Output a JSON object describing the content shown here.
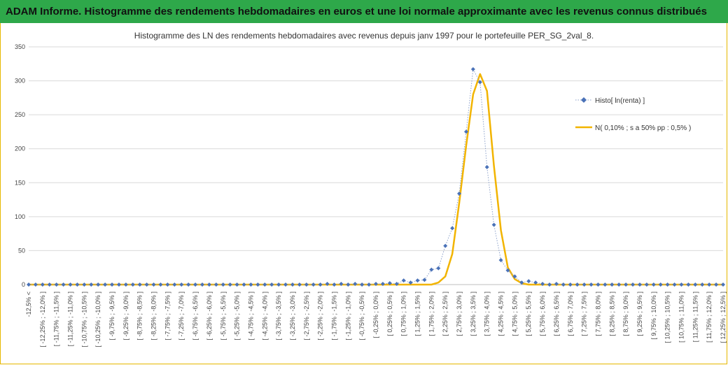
{
  "header": {
    "title": "ADAM Informe. Histogramme des rendements hebdomadaires en euros et une loi normale approximante avec les revenus connus distribués"
  },
  "colors": {
    "header_bg": "#2ea84a",
    "histo": "#4a72b8",
    "normal": "#f2b400",
    "grid": "#d9d9d9"
  },
  "chart_data": {
    "type": "line",
    "title": "Histogramme des LN des rendements hebdomadaires avec revenus depuis janv 1997 pour le portefeuille PER_SG_2val_8.",
    "xlabel": "",
    "ylabel": "",
    "ylim": [
      0,
      350
    ],
    "yticks": [
      0,
      50,
      100,
      150,
      200,
      250,
      300,
      350
    ],
    "grid": true,
    "legend": "right",
    "categories": [
      "-12,5% <",
      "[ -12,5% ; -12,25% ]",
      "[ -12,25% ; -12,0% ]",
      "[ -12,0% ; -11,75% ]",
      "[ -11,75% ; -11,5% ]",
      "[ -11,5% ; -11,25% ]",
      "[ -11,25% ; -11,0% ]",
      "[ -11,0% ; -10,75% ]",
      "[ -10,75% ; -10,5% ]",
      "[ -10,5% ; -10,25% ]",
      "[ -10,25% ; -10,0% ]",
      "[ -10,0% ; -9,75% ]",
      "[ -9,75% ; -9,5% ]",
      "[ -9,5% ; -9,25% ]",
      "[ -9,25% ; -9,0% ]",
      "[ -9,0% ; -8,75% ]",
      "[ -8,75% ; -8,5% ]",
      "[ -8,5% ; -8,25% ]",
      "[ -8,25% ; -8,0% ]",
      "[ -8,0% ; -7,75% ]",
      "[ -7,75% ; -7,5% ]",
      "[ -7,5% ; -7,25% ]",
      "[ -7,25% ; -7,0% ]",
      "[ -7,0% ; -6,75% ]",
      "[ -6,75% ; -6,5% ]",
      "[ -6,5% ; -6,25% ]",
      "[ -6,25% ; -6,0% ]",
      "[ -6,0% ; -5,75% ]",
      "[ -5,75% ; -5,5% ]",
      "[ -5,5% ; -5,25% ]",
      "[ -5,25% ; -5,0% ]",
      "[ -5,0% ; -4,75% ]",
      "[ -4,75% ; -4,5% ]",
      "[ -4,5% ; -4,25% ]",
      "[ -4,25% ; -4,0% ]",
      "[ -4,0% ; -3,75% ]",
      "[ -3,75% ; -3,5% ]",
      "[ -3,5% ; -3,25% ]",
      "[ -3,25% ; -3,0% ]",
      "[ -3,0% ; -2,75% ]",
      "[ -2,75% ; -2,5% ]",
      "[ -2,5% ; -2,25% ]",
      "[ -2,25% ; -2,0% ]",
      "[ -2,0% ; -1,75% ]",
      "[ -1,75% ; -1,5% ]",
      "[ -1,5% ; -1,25% ]",
      "[ -1,25% ; -1,0% ]",
      "[ -1,0% ; -0,75% ]",
      "[ -0,75% ; -0,5% ]",
      "[ -0,5% ; -0,25% ]",
      "[ -0,25% ; 0,0% ]",
      "[ 0,0% ; 0,25% ]",
      "[ 0,25% ; 0,5% ]",
      "[ 0,5% ; 0,75% ]",
      "[ 0,75% ; 1,0% ]",
      "[ 1,0% ; 1,25% ]",
      "[ 1,25% ; 1,5% ]",
      "[ 1,5% ; 1,75% ]",
      "[ 1,75% ; 2,0% ]",
      "[ 2,0% ; 2,25% ]",
      "[ 2,25% ; 2,5% ]",
      "[ 2,5% ; 2,75% ]",
      "[ 2,75% ; 3,0% ]",
      "[ 3,0% ; 3,25% ]",
      "[ 3,25% ; 3,5% ]",
      "[ 3,5% ; 3,75% ]",
      "[ 3,75% ; 4,0% ]",
      "[ 4,0% ; 4,25% ]",
      "[ 4,25% ; 4,5% ]",
      "[ 4,5% ; 4,75% ]",
      "[ 4,75% ; 5,0% ]",
      "[ 5,0% ; 5,25% ]",
      "[ 5,25% ; 5,5% ]",
      "[ 5,5% ; 5,75% ]",
      "[ 5,75% ; 6,0% ]",
      "[ 6,0% ; 6,25% ]",
      "[ 6,25% ; 6,5% ]",
      "[ 6,5% ; 6,75% ]",
      "[ 6,75% ; 7,0% ]",
      "[ 7,0% ; 7,25% ]",
      "[ 7,25% ; 7,5% ]",
      "[ 7,5% ; 7,75% ]",
      "[ 7,75% ; 8,0% ]",
      "[ 8,0% ; 8,25% ]",
      "[ 8,25% ; 8,5% ]",
      "[ 8,5% ; 8,75% ]",
      "[ 8,75% ; 9,0% ]",
      "[ 9,0% ; 9,25% ]",
      "[ 9,25% ; 9,5% ]",
      "[ 9,5% ; 9,75% ]",
      "[ 9,75% ; 10,0% ]",
      "[ 10,0% ; 10,25% ]",
      "[ 10,25% ; 10,5% ]",
      "[ 10,5% ; 10,75% ]",
      "[ 10,75% ; 11,0% ]",
      "[ 11,0% ; 11,25% ]",
      "[ 11,25% ; 11,5% ]",
      "[ 11,5% ; 11,75% ]",
      "[ 11,75% ; 12,0% ]",
      "[ 12,0% ; 12,25% ]",
      "[ 12,25% ; 12,5% ]"
    ],
    "series": [
      {
        "name": "Histo[ ln(renta) ]",
        "style": "diamond-markers-dotted",
        "values": [
          0,
          0,
          0,
          0,
          0,
          0,
          0,
          0,
          0,
          0,
          0,
          0,
          0,
          0,
          0,
          0,
          0,
          0,
          0,
          0,
          0,
          0,
          0,
          0,
          0,
          0,
          0,
          0,
          0,
          0,
          0,
          0,
          0,
          0,
          0,
          0,
          0,
          0,
          0,
          0,
          0,
          0,
          0,
          1,
          0,
          1,
          0,
          1,
          0,
          0,
          1,
          1,
          2,
          1,
          6,
          3,
          6,
          7,
          22,
          24,
          57,
          83,
          134,
          225,
          317,
          298,
          173,
          88,
          36,
          21,
          12,
          3,
          5,
          3,
          1,
          0,
          1,
          0,
          0,
          0,
          0,
          0,
          0,
          0,
          0,
          0,
          0,
          0,
          0,
          0,
          0,
          0,
          0,
          0,
          0,
          0,
          0,
          0,
          0,
          0,
          0
        ]
      },
      {
        "name": "N( 0,10% ; s a 50% pp : 0,5% )",
        "style": "line",
        "values": [
          0,
          0,
          0,
          0,
          0,
          0,
          0,
          0,
          0,
          0,
          0,
          0,
          0,
          0,
          0,
          0,
          0,
          0,
          0,
          0,
          0,
          0,
          0,
          0,
          0,
          0,
          0,
          0,
          0,
          0,
          0,
          0,
          0,
          0,
          0,
          0,
          0,
          0,
          0,
          0,
          0,
          0,
          0,
          0,
          0,
          0,
          0,
          0,
          0,
          0,
          0,
          0,
          0,
          0,
          0,
          0,
          0,
          0,
          0,
          3,
          12,
          45,
          120,
          205,
          280,
          310,
          285,
          175,
          80,
          25,
          8,
          2,
          0,
          0,
          0,
          0,
          0,
          0,
          0,
          0,
          0,
          0,
          0,
          0,
          0,
          0,
          0,
          0,
          0,
          0,
          0,
          0,
          0,
          0,
          0,
          0,
          0,
          0,
          0,
          0,
          0
        ]
      }
    ]
  }
}
